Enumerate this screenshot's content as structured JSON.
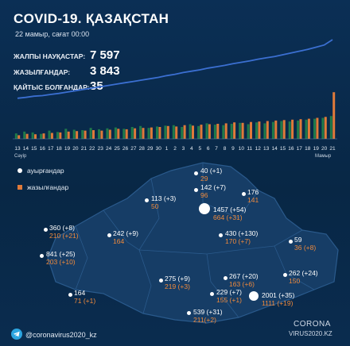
{
  "header": {
    "title": "COVID-19. ҚАЗАҚСТАН",
    "date": "22 мамыр, сағат 00:00"
  },
  "stats": [
    {
      "label": "ЖАЛПЫ НАУҚАСТАР:",
      "value": "7 597"
    },
    {
      "label": "ЖАЗЫЛҒАНДАР:",
      "value": "3 843"
    },
    {
      "label": "ҚАЙТЫС БОЛҒАНДАР:",
      "value": "35"
    }
  ],
  "chart_data": {
    "type": "bar",
    "title": "",
    "categories": [
      "13",
      "14",
      "15",
      "16",
      "17",
      "18",
      "19",
      "20",
      "21",
      "22",
      "23",
      "24",
      "25",
      "26",
      "27",
      "28",
      "29",
      "30",
      "1",
      "2",
      "3",
      "4",
      "5",
      "6",
      "7",
      "8",
      "9",
      "10",
      "11",
      "12",
      "13",
      "14",
      "15",
      "16",
      "17",
      "18",
      "19",
      "20",
      "21"
    ],
    "month_labels": [
      "Сәуір",
      "Мамыр"
    ],
    "cumulative": [
      1000,
      1100,
      1230,
      1300,
      1430,
      1550,
      1700,
      1850,
      2000,
      2150,
      2300,
      2450,
      2600,
      2750,
      2900,
      3050,
      3200,
      3350,
      3550,
      3700,
      3900,
      4050,
      4200,
      4400,
      4550,
      4700,
      4900,
      5050,
      5200,
      5400,
      5550,
      5700,
      5900,
      6100,
      6300,
      6500,
      6750,
      7000,
      7597
    ],
    "series": [
      {
        "values": [
          60,
          80,
          70,
          55,
          90,
          75,
          110,
          100,
          95,
          120,
          105,
          115,
          125,
          110,
          130,
          140,
          120,
          135,
          145,
          150,
          130,
          160,
          140,
          170,
          155,
          150,
          165,
          175,
          160,
          180,
          170,
          185,
          195,
          190,
          200,
          210,
          220,
          230,
          250
        ]
      },
      {
        "values": [
          40,
          55,
          50,
          60,
          65,
          70,
          80,
          85,
          90,
          95,
          90,
          100,
          110,
          105,
          115,
          120,
          125,
          130,
          140,
          135,
          150,
          145,
          155,
          160,
          165,
          170,
          180,
          175,
          185,
          190,
          195,
          200,
          205,
          210,
          215,
          220,
          230,
          240,
          510
        ]
      }
    ],
    "colors": {
      "infected": "#e07a3a",
      "recovered": "#1f7a4a",
      "line": "#3b6fd1"
    }
  },
  "legend": [
    {
      "label": "ауырғандар",
      "color": "#ffffff"
    },
    {
      "label": "жазылғандар",
      "color": "#e07a3a"
    }
  ],
  "regions": [
    {
      "cases": "40 (+1)",
      "recovered": "29"
    },
    {
      "cases": "142 (+7)",
      "recovered": "96"
    },
    {
      "cases": "176",
      "recovered": "141"
    },
    {
      "cases": "113 (+3)",
      "recovered": "50"
    },
    {
      "cases": "1457 (+54)",
      "recovered": "664 (+31)"
    },
    {
      "cases": "360 (+8)",
      "recovered": "210 (+21)"
    },
    {
      "cases": "242 (+9)",
      "recovered": "164"
    },
    {
      "cases": "430 (+130)",
      "recovered": "170 (+7)"
    },
    {
      "cases": "59",
      "recovered": "36 (+8)"
    },
    {
      "cases": "841 (+25)",
      "recovered": "203 (+10)"
    },
    {
      "cases": "275 (+9)",
      "recovered": "219 (+3)"
    },
    {
      "cases": "267 (+20)",
      "recovered": "163 (+6)"
    },
    {
      "cases": "262 (+24)",
      "recovered": "150"
    },
    {
      "cases": "164",
      "recovered": "71 (+1)"
    },
    {
      "cases": "229 (+7)",
      "recovered": "155 (+1)"
    },
    {
      "cases": "2001 (+35)",
      "recovered": "1111 (+19)"
    },
    {
      "cases": "539 (+31)",
      "recovered": "211(+2)"
    }
  ],
  "footer": {
    "handle": "@coronavirus2020_kz",
    "brand_top": "CORONA",
    "brand_bottom": "VIRUS2020.KZ"
  }
}
